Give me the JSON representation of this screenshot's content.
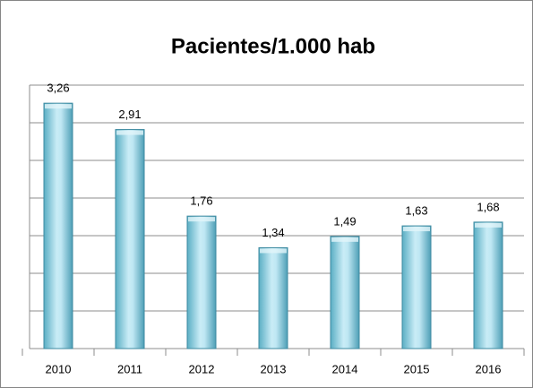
{
  "chart_data": {
    "type": "bar",
    "title": "Pacientes/1.000 hab",
    "categories": [
      "2010",
      "2011",
      "2012",
      "2013",
      "2014",
      "2015",
      "2016"
    ],
    "values": [
      3.26,
      2.91,
      1.76,
      1.34,
      1.49,
      1.63,
      1.68
    ],
    "value_labels": [
      "3,26",
      "2,91",
      "1,76",
      "1,34",
      "1,49",
      "1,63",
      "1,68"
    ],
    "color": "#8fd3e6",
    "ylim": [
      0,
      3.5
    ],
    "yticks": [
      0,
      0.5,
      1,
      1.5,
      2,
      2.5,
      3,
      3.5
    ],
    "grid": true
  }
}
